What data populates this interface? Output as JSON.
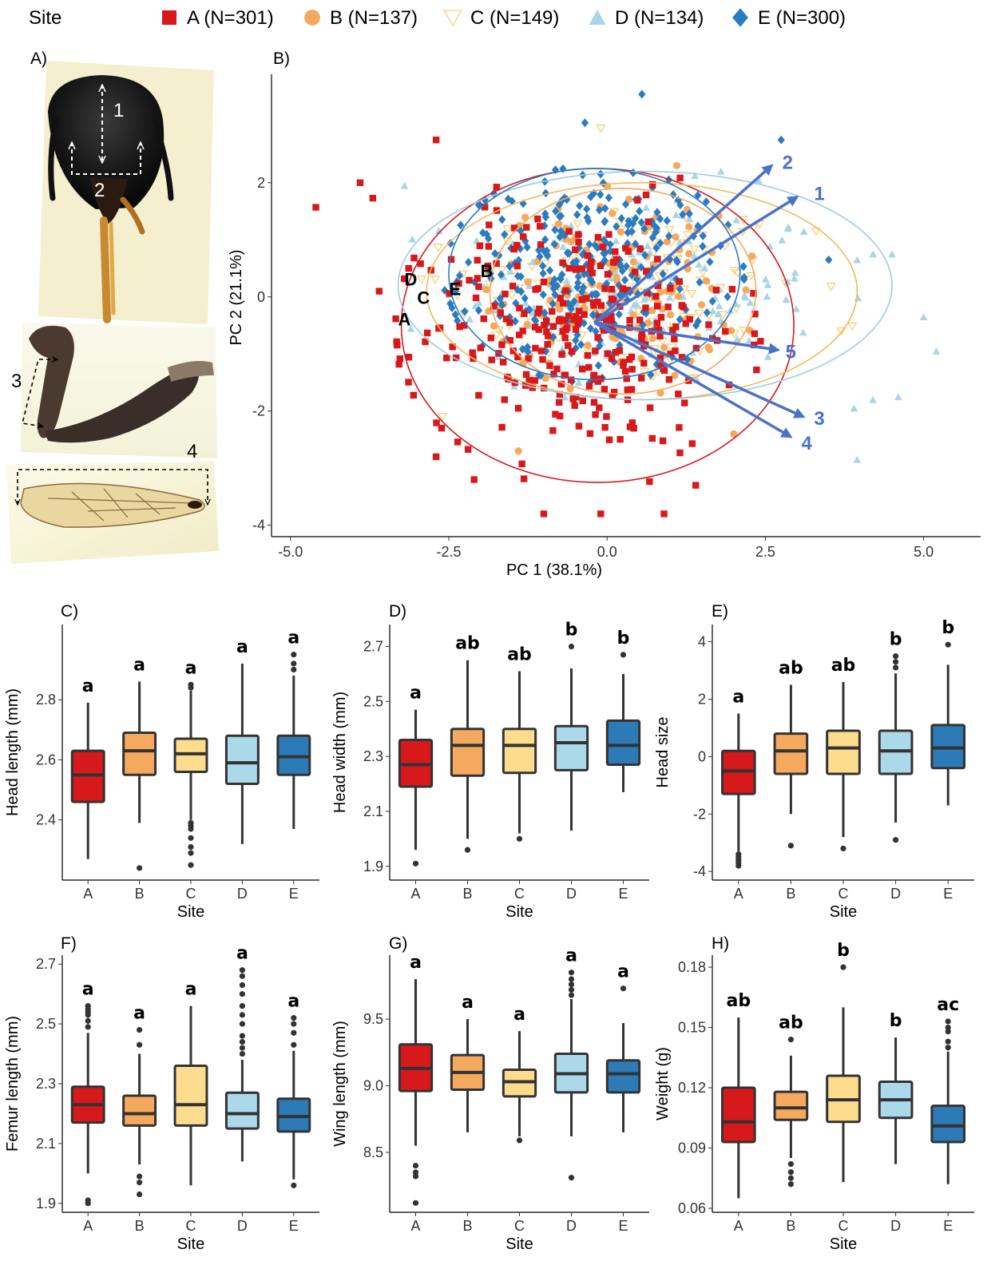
{
  "legend": {
    "title": "Site",
    "items": [
      {
        "site": "A",
        "label": "A (N=301)",
        "color": "#d7191c",
        "marker": "square"
      },
      {
        "site": "B",
        "label": "B (N=137)",
        "color": "#f5a95f",
        "marker": "circle"
      },
      {
        "site": "C",
        "label": "C (N=149)",
        "color": "#f7d17e",
        "marker": "triangle-down-open"
      },
      {
        "site": "D",
        "label": "D (N=134)",
        "color": "#a8d5e8",
        "marker": "triangle-up"
      },
      {
        "site": "E",
        "label": "E (N=300)",
        "color": "#2a7bc0",
        "marker": "diamond"
      }
    ]
  },
  "photo_panel": {
    "letter": "A)",
    "annotations": [
      "1",
      "2",
      "3",
      "4"
    ],
    "images": [
      "bee-head-photo",
      "bee-leg-photo",
      "bee-wing-photo"
    ]
  },
  "chart_data": [
    {
      "panel": "B)",
      "type": "scatter",
      "xlabel": "PC 1 (38.1%)",
      "ylabel": "PC 2 (21.1%)",
      "xlim": [
        -5.3,
        5.9
      ],
      "ylim": [
        -4.2,
        3.9
      ],
      "xticks": [
        -5.0,
        -2.5,
        0.0,
        2.5,
        5.0
      ],
      "xtick_labels": [
        "-5.0",
        "-2.5",
        "0.0",
        "2.5",
        "5.0"
      ],
      "yticks": [
        2,
        0,
        -2,
        -4
      ],
      "ytick_labels": [
        "2",
        "0",
        "-2",
        "-4"
      ],
      "ellipses": [
        {
          "site": "A",
          "cx": -0.15,
          "cy": -0.5,
          "rx": 3.1,
          "ry": 2.75
        },
        {
          "site": "B",
          "cx": 0.25,
          "cy": 0.1,
          "rx": 2.1,
          "ry": 1.8
        },
        {
          "site": "C",
          "cx": 0.55,
          "cy": 0.1,
          "rx": 3.4,
          "ry": 1.9
        },
        {
          "site": "D",
          "cx": 0.6,
          "cy": 0.2,
          "rx": 3.9,
          "ry": 2.0
        },
        {
          "site": "E",
          "cx": -0.2,
          "cy": 0.4,
          "rx": 2.3,
          "ry": 1.85
        }
      ],
      "ellipse_labels": [
        {
          "text": "A",
          "x": -3.2,
          "y": -0.5
        },
        {
          "text": "B",
          "x": -1.9,
          "y": 0.35
        },
        {
          "text": "C",
          "x": -2.9,
          "y": -0.12
        },
        {
          "text": "D",
          "x": -3.1,
          "y": 0.2
        },
        {
          "text": "E",
          "x": -2.4,
          "y": 0.03
        }
      ],
      "loadings": [
        {
          "label": "1",
          "x": 3.0,
          "y": 1.75
        },
        {
          "label": "2",
          "x": 2.6,
          "y": 2.3
        },
        {
          "label": "3",
          "x": 3.1,
          "y": -2.1
        },
        {
          "label": "4",
          "x": 2.9,
          "y": -2.45
        },
        {
          "label": "5",
          "x": 2.7,
          "y": -0.93
        }
      ],
      "loading_origin": [
        -0.2,
        -0.45
      ],
      "point_counts": {
        "A": 301,
        "B": 137,
        "C": 149,
        "D": 134,
        "E": 300
      },
      "outlier_points": {
        "A": [
          [
            -4.6,
            1.57
          ],
          [
            -3.9,
            2.0
          ],
          [
            -3.7,
            1.73
          ],
          [
            -2.7,
            2.75
          ],
          [
            -3.6,
            0.1
          ],
          [
            -1.0,
            -3.8
          ],
          [
            -0.1,
            -3.8
          ],
          [
            0.9,
            -3.8
          ],
          [
            1.4,
            -3.3
          ],
          [
            -2.1,
            -3.2
          ],
          [
            -2.7,
            -2.8
          ]
        ],
        "B": [
          [
            1.1,
            2.3
          ],
          [
            -1.4,
            -2.7
          ],
          [
            2.0,
            -2.4
          ]
        ],
        "C": [
          [
            -0.1,
            2.95
          ],
          [
            -2.6,
            -2.1
          ],
          [
            3.3,
            1.15
          ],
          [
            3.7,
            -0.6
          ]
        ],
        "D": [
          [
            -3.2,
            1.95
          ],
          [
            3.95,
            0.65
          ],
          [
            4.2,
            0.75
          ],
          [
            4.5,
            0.75
          ],
          [
            5.0,
            -0.35
          ],
          [
            5.2,
            -0.95
          ],
          [
            4.6,
            -1.75
          ],
          [
            4.2,
            -1.8
          ],
          [
            3.95,
            -2.85
          ],
          [
            3.9,
            -1.95
          ]
        ],
        "E": [
          [
            0.55,
            3.55
          ],
          [
            -0.35,
            3.05
          ],
          [
            2.75,
            2.75
          ],
          [
            3.5,
            0.65
          ]
        ]
      }
    },
    {
      "panel": "C)",
      "type": "box",
      "categories": [
        "A",
        "B",
        "C",
        "D",
        "E"
      ],
      "xlabel": "Site",
      "ylabel": "Head length (mm)",
      "ylim": [
        2.2,
        3.05
      ],
      "yticks": [
        2.4,
        2.6,
        2.8
      ],
      "ytick_labels": [
        "2.4",
        "2.6",
        "2.8"
      ],
      "boxes": [
        {
          "min": 2.27,
          "q1": 2.46,
          "median": 2.55,
          "q3": 2.63,
          "max": 2.79,
          "outliers": []
        },
        {
          "min": 2.39,
          "q1": 2.55,
          "median": 2.63,
          "q3": 2.69,
          "max": 2.86,
          "outliers": [
            2.24
          ]
        },
        {
          "min": 2.4,
          "q1": 2.56,
          "median": 2.62,
          "q3": 2.67,
          "max": 2.83,
          "outliers": [
            2.39,
            2.38,
            2.37,
            2.34,
            2.31,
            2.29,
            2.25,
            2.84,
            2.85
          ]
        },
        {
          "min": 2.32,
          "q1": 2.52,
          "median": 2.59,
          "q3": 2.68,
          "max": 2.92,
          "outliers": []
        },
        {
          "min": 2.37,
          "q1": 2.55,
          "median": 2.61,
          "q3": 2.68,
          "max": 2.88,
          "outliers": [
            2.9,
            2.92,
            2.95
          ]
        }
      ],
      "letters": [
        "a",
        "a",
        "a",
        "a",
        "a"
      ]
    },
    {
      "panel": "D)",
      "type": "box",
      "categories": [
        "A",
        "B",
        "C",
        "D",
        "E"
      ],
      "xlabel": "Site",
      "ylabel": "Head width (mm)",
      "ylim": [
        1.85,
        2.78
      ],
      "yticks": [
        1.9,
        2.1,
        2.3,
        2.5,
        2.7
      ],
      "ytick_labels": [
        "1.9",
        "2.1",
        "2.3",
        "2.5",
        "2.7"
      ],
      "boxes": [
        {
          "min": 1.96,
          "q1": 2.19,
          "median": 2.27,
          "q3": 2.36,
          "max": 2.47,
          "outliers": [
            1.91
          ]
        },
        {
          "min": 2.0,
          "q1": 2.23,
          "median": 2.34,
          "q3": 2.4,
          "max": 2.65,
          "outliers": [
            1.96
          ]
        },
        {
          "min": 2.02,
          "q1": 2.24,
          "median": 2.34,
          "q3": 2.4,
          "max": 2.61,
          "outliers": [
            2.0
          ]
        },
        {
          "min": 2.03,
          "q1": 2.25,
          "median": 2.35,
          "q3": 2.41,
          "max": 2.62,
          "outliers": [
            2.7
          ]
        },
        {
          "min": 2.17,
          "q1": 2.27,
          "median": 2.34,
          "q3": 2.43,
          "max": 2.6,
          "outliers": [
            2.67
          ]
        }
      ],
      "letters": [
        "a",
        "ab",
        "ab",
        "b",
        "b"
      ]
    },
    {
      "panel": "E)",
      "type": "box",
      "categories": [
        "A",
        "B",
        "C",
        "D",
        "E"
      ],
      "xlabel": "Site",
      "ylabel": "Head size",
      "ylim": [
        -4.3,
        4.6
      ],
      "yticks": [
        -4,
        -2,
        0,
        2,
        4
      ],
      "ytick_labels": [
        "-4",
        "-2",
        "0",
        "2",
        "4"
      ],
      "boxes": [
        {
          "min": -3.3,
          "q1": -1.3,
          "median": -0.5,
          "q3": 0.2,
          "max": 1.5,
          "outliers": [
            -3.4,
            -3.5,
            -3.6,
            -3.7,
            -3.8
          ]
        },
        {
          "min": -2.0,
          "q1": -0.6,
          "median": 0.2,
          "q3": 0.8,
          "max": 2.5,
          "outliers": [
            -3.1
          ]
        },
        {
          "min": -2.8,
          "q1": -0.6,
          "median": 0.3,
          "q3": 0.9,
          "max": 2.6,
          "outliers": [
            -3.2
          ]
        },
        {
          "min": -2.3,
          "q1": -0.6,
          "median": 0.2,
          "q3": 0.9,
          "max": 2.9,
          "outliers": [
            -2.9,
            3.1,
            3.3,
            3.5
          ]
        },
        {
          "min": -1.7,
          "q1": -0.4,
          "median": 0.3,
          "q3": 1.1,
          "max": 3.2,
          "outliers": [
            3.9
          ]
        }
      ],
      "letters": [
        "a",
        "ab",
        "ab",
        "b",
        "b"
      ]
    },
    {
      "panel": "F)",
      "type": "box",
      "categories": [
        "A",
        "B",
        "C",
        "D",
        "E"
      ],
      "xlabel": "Site",
      "ylabel": "Femur length (mm)",
      "ylim": [
        1.87,
        2.73
      ],
      "yticks": [
        1.9,
        2.1,
        2.3,
        2.5,
        2.7
      ],
      "ytick_labels": [
        "1.9",
        "2.1",
        "2.3",
        "2.5",
        "2.7"
      ],
      "boxes": [
        {
          "min": 2.0,
          "q1": 2.17,
          "median": 2.23,
          "q3": 2.29,
          "max": 2.47,
          "outliers": [
            1.91,
            1.9,
            2.49,
            2.51,
            2.53,
            2.54,
            2.55,
            2.56
          ]
        },
        {
          "min": 2.03,
          "q1": 2.16,
          "median": 2.2,
          "q3": 2.26,
          "max": 2.4,
          "outliers": [
            2.43,
            2.48,
            1.99,
            1.97,
            1.93
          ]
        },
        {
          "min": 1.96,
          "q1": 2.16,
          "median": 2.23,
          "q3": 2.36,
          "max": 2.56,
          "outliers": []
        },
        {
          "min": 2.04,
          "q1": 2.15,
          "median": 2.2,
          "q3": 2.27,
          "max": 2.38,
          "outliers": [
            2.4,
            2.42,
            2.44,
            2.46,
            2.5,
            2.53,
            2.56,
            2.6,
            2.63,
            2.66,
            2.68
          ]
        },
        {
          "min": 1.98,
          "q1": 2.14,
          "median": 2.19,
          "q3": 2.25,
          "max": 2.41,
          "outliers": [
            1.96,
            2.43,
            2.47,
            2.5,
            2.52
          ]
        }
      ],
      "letters": [
        "a",
        "a",
        "a",
        "a",
        "a"
      ]
    },
    {
      "panel": "G)",
      "type": "box",
      "categories": [
        "A",
        "B",
        "C",
        "D",
        "E"
      ],
      "xlabel": "Site",
      "ylabel": "Wing length (mm)",
      "ylim": [
        8.05,
        9.98
      ],
      "yticks": [
        8.5,
        9.0,
        9.5
      ],
      "ytick_labels": [
        "8.5",
        "9.0",
        "9.5"
      ],
      "boxes": [
        {
          "min": 8.55,
          "q1": 8.96,
          "median": 9.13,
          "q3": 9.31,
          "max": 9.8,
          "outliers": [
            8.4,
            8.35,
            8.32,
            8.12
          ]
        },
        {
          "min": 8.65,
          "q1": 8.97,
          "median": 9.1,
          "q3": 9.23,
          "max": 9.5,
          "outliers": []
        },
        {
          "min": 8.62,
          "q1": 8.92,
          "median": 9.03,
          "q3": 9.12,
          "max": 9.41,
          "outliers": [
            8.59
          ]
        },
        {
          "min": 8.62,
          "q1": 8.95,
          "median": 9.09,
          "q3": 9.24,
          "max": 9.65,
          "outliers": [
            9.68,
            9.72,
            9.76,
            9.8,
            9.85,
            8.31
          ]
        },
        {
          "min": 8.65,
          "q1": 8.95,
          "median": 9.09,
          "q3": 9.19,
          "max": 9.47,
          "outliers": [
            9.73
          ]
        }
      ],
      "letters": [
        "a",
        "a",
        "a",
        "a",
        "a"
      ]
    },
    {
      "panel": "H)",
      "type": "box",
      "categories": [
        "A",
        "B",
        "C",
        "D",
        "E"
      ],
      "xlabel": "Site",
      "ylabel": "Weight (g)",
      "ylim": [
        0.058,
        0.186
      ],
      "yticks": [
        0.06,
        0.09,
        0.12,
        0.15,
        0.18
      ],
      "ytick_labels": [
        "0.06",
        "0.09",
        "0.12",
        "0.15",
        "0.18"
      ],
      "boxes": [
        {
          "min": 0.065,
          "q1": 0.093,
          "median": 0.103,
          "q3": 0.12,
          "max": 0.155,
          "outliers": []
        },
        {
          "min": 0.085,
          "q1": 0.104,
          "median": 0.11,
          "q3": 0.118,
          "max": 0.136,
          "outliers": [
            0.082,
            0.078,
            0.075,
            0.072,
            0.144
          ]
        },
        {
          "min": 0.073,
          "q1": 0.103,
          "median": 0.114,
          "q3": 0.126,
          "max": 0.16,
          "outliers": [
            0.18
          ]
        },
        {
          "min": 0.082,
          "q1": 0.105,
          "median": 0.114,
          "q3": 0.123,
          "max": 0.145,
          "outliers": []
        },
        {
          "min": 0.072,
          "q1": 0.093,
          "median": 0.101,
          "q3": 0.111,
          "max": 0.138,
          "outliers": [
            0.14,
            0.143,
            0.148,
            0.15,
            0.153
          ]
        }
      ],
      "letters": [
        "ab",
        "ab",
        "b",
        "b",
        "ac"
      ]
    }
  ]
}
